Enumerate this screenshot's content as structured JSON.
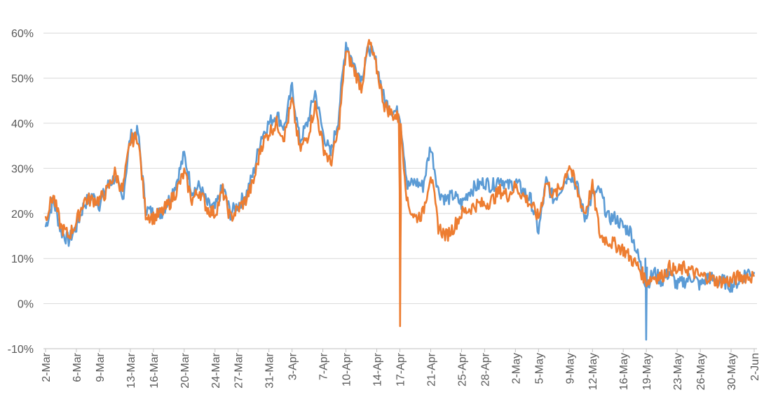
{
  "chart_data": {
    "type": "line",
    "title": "",
    "xlabel": "",
    "ylabel": "",
    "ylim": [
      -10,
      65
    ],
    "y_ticks": [
      -10,
      0,
      10,
      20,
      30,
      40,
      50,
      60
    ],
    "y_tick_labels": [
      "-10%",
      "0%",
      "10%",
      "20%",
      "30%",
      "40%",
      "50%",
      "60%"
    ],
    "x_tick_labels": [
      "2-Mar",
      "6-Mar",
      "9-Mar",
      "13-Mar",
      "16-Mar",
      "20-Mar",
      "24-Mar",
      "27-Mar",
      "31-Mar",
      "3-Apr",
      "7-Apr",
      "10-Apr",
      "14-Apr",
      "17-Apr",
      "21-Apr",
      "25-Apr",
      "28-Apr",
      "2-May",
      "5-May",
      "9-May",
      "12-May",
      "16-May",
      "19-May",
      "23-May",
      "26-May",
      "30-May",
      "2-Jun"
    ],
    "grid": "horizontal",
    "legend": "none",
    "series": [
      {
        "color": "#5b9bd5",
        "x": [
          "2-Mar",
          "3-Mar",
          "4-Mar",
          "5-Mar",
          "6-Mar",
          "7-Mar",
          "8-Mar",
          "9-Mar",
          "10-Mar",
          "11-Mar",
          "12-Mar",
          "13-Mar",
          "14-Mar",
          "15-Mar",
          "16-Mar",
          "17-Mar",
          "18-Mar",
          "19-Mar",
          "20-Mar",
          "21-Mar",
          "22-Mar",
          "23-Mar",
          "24-Mar",
          "25-Mar",
          "26-Mar",
          "27-Mar",
          "28-Mar",
          "29-Mar",
          "30-Mar",
          "31-Mar",
          "1-Apr",
          "2-Apr",
          "3-Apr",
          "4-Apr",
          "5-Apr",
          "6-Apr",
          "7-Apr",
          "8-Apr",
          "9-Apr",
          "10-Apr",
          "11-Apr",
          "12-Apr",
          "13-Apr",
          "14-Apr",
          "15-Apr",
          "16-Apr",
          "17-Apr",
          "18-Apr",
          "19-Apr",
          "20-Apr",
          "21-Apr",
          "22-Apr",
          "23-Apr",
          "24-Apr",
          "25-Apr",
          "26-Apr",
          "27-Apr",
          "28-Apr",
          "29-Apr",
          "30-Apr",
          "1-May",
          "2-May",
          "3-May",
          "4-May",
          "5-May",
          "6-May",
          "7-May",
          "8-May",
          "9-May",
          "10-May",
          "11-May",
          "12-May",
          "13-May",
          "14-May",
          "15-May",
          "16-May",
          "17-May",
          "18-May",
          "19-May",
          "20-May",
          "21-May",
          "22-May",
          "23-May",
          "24-May",
          "25-May",
          "26-May",
          "27-May",
          "28-May",
          "29-May",
          "30-May",
          "31-May",
          "1-Jun",
          "2-Jun"
        ],
        "values": [
          17,
          23,
          16,
          14,
          17,
          22,
          24,
          22,
          26,
          28,
          23,
          37,
          38,
          21,
          20,
          20,
          23,
          27,
          33,
          25,
          26,
          22,
          21,
          26,
          20,
          22,
          24,
          29,
          37,
          40,
          42,
          39,
          48,
          36,
          40,
          47,
          38,
          33,
          41,
          58,
          53,
          50,
          57,
          53,
          45,
          43,
          42,
          26,
          27,
          26,
          35,
          25,
          23,
          24,
          22,
          25,
          26,
          27,
          26,
          28,
          26,
          27,
          25,
          23,
          16,
          27,
          23,
          26,
          29,
          26,
          19,
          24,
          25,
          19,
          19,
          17,
          16,
          10,
          4,
          7,
          5,
          7,
          4,
          5,
          6,
          4,
          6,
          5,
          5,
          4,
          5,
          7,
          7
        ]
      },
      {
        "color": "#ed7d31",
        "x": [
          "2-Mar",
          "3-Mar",
          "4-Mar",
          "5-Mar",
          "6-Mar",
          "7-Mar",
          "8-Mar",
          "9-Mar",
          "10-Mar",
          "11-Mar",
          "12-Mar",
          "13-Mar",
          "14-Mar",
          "15-Mar",
          "16-Mar",
          "17-Mar",
          "18-Mar",
          "19-Mar",
          "20-Mar",
          "21-Mar",
          "22-Mar",
          "23-Mar",
          "24-Mar",
          "25-Mar",
          "26-Mar",
          "27-Mar",
          "28-Mar",
          "29-Mar",
          "30-Mar",
          "31-Mar",
          "1-Apr",
          "2-Apr",
          "3-Apr",
          "4-Apr",
          "5-Apr",
          "6-Apr",
          "7-Apr",
          "8-Apr",
          "9-Apr",
          "10-Apr",
          "11-Apr",
          "12-Apr",
          "13-Apr",
          "14-Apr",
          "15-Apr",
          "16-Apr",
          "17-Apr",
          "18-Apr",
          "19-Apr",
          "20-Apr",
          "21-Apr",
          "22-Apr",
          "23-Apr",
          "24-Apr",
          "25-Apr",
          "26-Apr",
          "27-Apr",
          "28-Apr",
          "29-Apr",
          "30-Apr",
          "1-May",
          "2-May",
          "3-May",
          "4-May",
          "5-May",
          "6-May",
          "7-May",
          "8-May",
          "9-May",
          "10-May",
          "11-May",
          "12-May",
          "13-May",
          "14-May",
          "15-May",
          "16-May",
          "17-May",
          "18-May",
          "19-May",
          "20-May",
          "21-May",
          "22-May",
          "23-May",
          "24-May",
          "25-May",
          "26-May",
          "27-May",
          "28-May",
          "29-May",
          "30-May",
          "31-May",
          "1-Jun",
          "2-Jun"
        ],
        "values": [
          19,
          24,
          17,
          15,
          18,
          23,
          23,
          23,
          25,
          29,
          25,
          36,
          37,
          20,
          19,
          20,
          22,
          25,
          29,
          23,
          25,
          21,
          20,
          25,
          19,
          21,
          23,
          27,
          35,
          38,
          40,
          37,
          45,
          34,
          37,
          44,
          35,
          31,
          38,
          56,
          52,
          48,
          58,
          52,
          44,
          42,
          41,
          22,
          19,
          20,
          29,
          17,
          15,
          17,
          20,
          21,
          22,
          22,
          23,
          25,
          24,
          26,
          24,
          22,
          19,
          27,
          24,
          26,
          31,
          25,
          20,
          26,
          15,
          14,
          13,
          12,
          10,
          8,
          5,
          6,
          6,
          8,
          7,
          8,
          7,
          6,
          6,
          5,
          5,
          5,
          6,
          6,
          6
        ]
      }
    ],
    "spikes": [
      {
        "color": "#ed7d31",
        "x": "17-Apr",
        "values": [
          42,
          40,
          32,
          25,
          -5,
          12,
          22
        ]
      },
      {
        "color": "#5b9bd5",
        "x": "19-May",
        "values": [
          10,
          6,
          -8,
          2,
          8
        ]
      }
    ]
  }
}
